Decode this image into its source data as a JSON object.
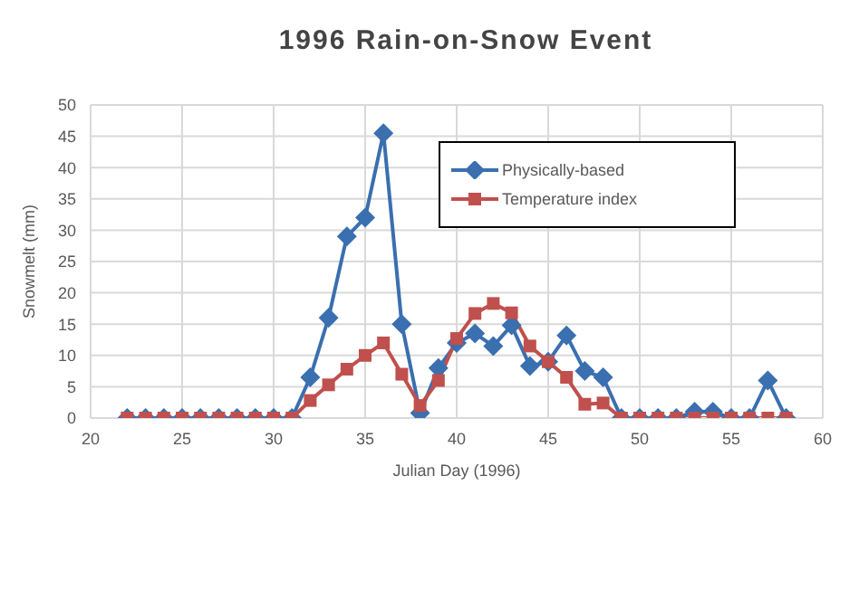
{
  "chart_data": {
    "type": "line",
    "title": "1996 Rain-on-Snow Event",
    "xlabel": "Julian Day (1996)",
    "ylabel": "Snowmelt  (mm)",
    "x": [
      22,
      23,
      24,
      25,
      26,
      27,
      28,
      29,
      30,
      31,
      32,
      33,
      34,
      35,
      36,
      37,
      38,
      39,
      40,
      41,
      42,
      43,
      44,
      45,
      46,
      47,
      48,
      49,
      50,
      51,
      52,
      53,
      54,
      55,
      56,
      57,
      58
    ],
    "series": [
      {
        "name": "Physically-based",
        "color": "#3a6fb0",
        "marker": "diamond",
        "values": [
          0,
          0,
          0,
          0,
          0,
          0,
          0,
          0,
          0,
          0,
          6.5,
          16,
          29,
          32,
          45.5,
          15,
          0.8,
          8,
          12,
          13.5,
          11.5,
          14.8,
          8.3,
          9,
          13.2,
          7.5,
          6.5,
          0,
          0,
          0,
          0,
          1,
          1,
          0,
          0,
          6,
          0
        ]
      },
      {
        "name": "Temperature index",
        "color": "#c0504d",
        "marker": "square",
        "values": [
          0,
          0,
          0,
          0,
          0,
          0,
          0,
          0,
          0,
          0,
          2.8,
          5.3,
          7.8,
          10,
          12,
          7,
          2,
          6,
          12.7,
          16.7,
          18.3,
          16.8,
          11.5,
          9,
          6.5,
          2.2,
          2.4,
          0,
          0,
          0,
          0,
          0,
          0,
          0,
          0,
          0,
          0
        ]
      }
    ],
    "xlim": [
      20,
      60
    ],
    "xticks": [
      20,
      25,
      30,
      35,
      40,
      45,
      50,
      55,
      60
    ],
    "ylim": [
      0,
      50
    ],
    "yticks": [
      0,
      5,
      10,
      15,
      20,
      25,
      30,
      35,
      40,
      45,
      50
    ],
    "grid": true,
    "legend": "top right",
    "line_style": "solid"
  }
}
